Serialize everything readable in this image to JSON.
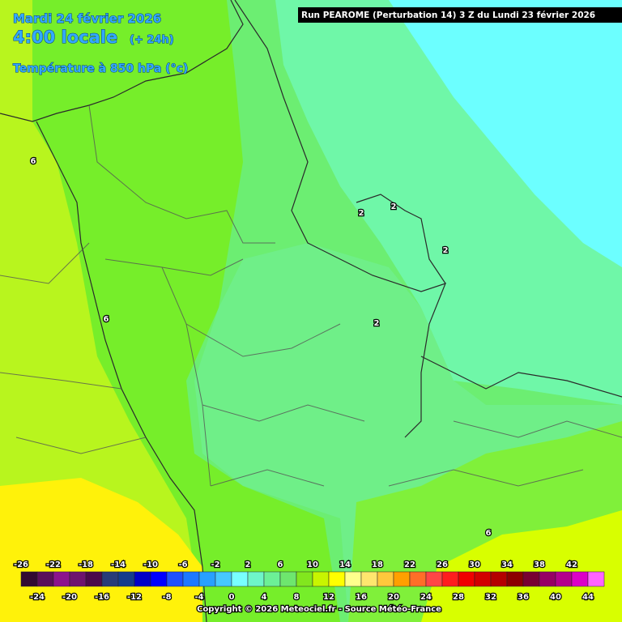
{
  "header": {
    "date": "Mardi 24 février 2026",
    "time": "4:00 locale",
    "lead": "(+ 24h)",
    "variable": "Température à 850 hPa (°c)",
    "run": "Run PEAROME (Perturbation 14) 3 Z du Lundi 23 février 2026"
  },
  "map": {
    "contour_labels": [
      6,
      6,
      2,
      2,
      2,
      2,
      6
    ]
  },
  "legend": {
    "labels": [
      -26,
      -24,
      -22,
      -20,
      -18,
      -16,
      -14,
      -12,
      -10,
      -8,
      -6,
      -4,
      -2,
      0,
      2,
      4,
      6,
      8,
      10,
      12,
      14,
      16,
      18,
      20,
      22,
      24,
      26,
      28,
      30,
      32,
      34,
      36,
      38,
      40,
      42,
      44
    ],
    "colors": [
      "#320a32",
      "#5a0f5a",
      "#8c148c",
      "#6e146e",
      "#4b0a4b",
      "#283c78",
      "#143c8c",
      "#0000c8",
      "#0000ff",
      "#1e50ff",
      "#1e78ff",
      "#28a0ff",
      "#46c8ff",
      "#78ffff",
      "#6ef5c8",
      "#6cf096",
      "#6ee66e",
      "#82e61e",
      "#c8f500",
      "#ffff00",
      "#ffff8c",
      "#ffe66e",
      "#ffc83c",
      "#ffa000",
      "#ff6e28",
      "#ff4646",
      "#ff1e1e",
      "#f00000",
      "#d20000",
      "#b40000",
      "#8c0000",
      "#780032",
      "#960064",
      "#b4008c",
      "#dc00c8",
      "#ff64ff"
    ]
  },
  "footer": {
    "copyright": "Copyright © 2026 Meteociel.fr - Source Météo-France"
  }
}
